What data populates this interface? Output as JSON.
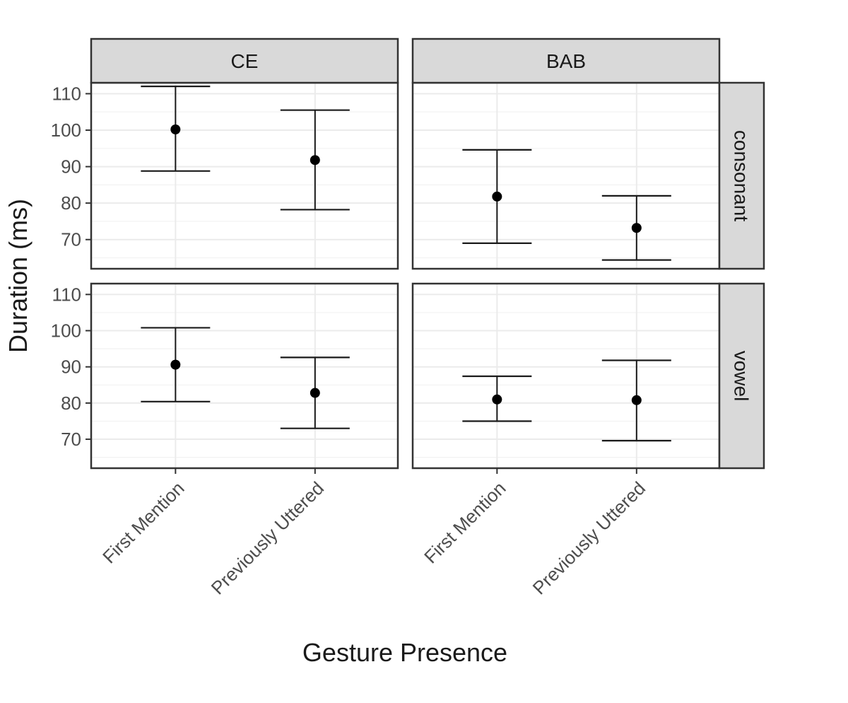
{
  "chart_data": {
    "type": "scatter",
    "subtype": "faceted point with error bars",
    "title": "",
    "xlabel": "Gesture Presence",
    "ylabel": "Duration (ms)",
    "categories": [
      "First Mention",
      "Previously Uttered"
    ],
    "column_facets": [
      "CE",
      "BAB"
    ],
    "row_facets": [
      "consonant",
      "vowel"
    ],
    "ylim": [
      62,
      113
    ],
    "yticks": [
      70,
      80,
      90,
      100,
      110
    ],
    "grid": true,
    "legend": "none",
    "panels": [
      {
        "column": "CE",
        "row": "consonant",
        "points": [
          {
            "x": "First Mention",
            "y": 100.2,
            "ymin": 88.8,
            "ymax": 112.0
          },
          {
            "x": "Previously Uttered",
            "y": 91.8,
            "ymin": 78.2,
            "ymax": 105.5
          }
        ]
      },
      {
        "column": "BAB",
        "row": "consonant",
        "points": [
          {
            "x": "First Mention",
            "y": 81.8,
            "ymin": 69.0,
            "ymax": 94.6
          },
          {
            "x": "Previously Uttered",
            "y": 73.2,
            "ymin": 64.4,
            "ymax": 82.0
          }
        ]
      },
      {
        "column": "CE",
        "row": "vowel",
        "points": [
          {
            "x": "First Mention",
            "y": 90.6,
            "ymin": 80.4,
            "ymax": 100.8
          },
          {
            "x": "Previously Uttered",
            "y": 82.8,
            "ymin": 73.0,
            "ymax": 92.6
          }
        ]
      },
      {
        "column": "BAB",
        "row": "vowel",
        "points": [
          {
            "x": "First Mention",
            "y": 81.0,
            "ymin": 75.0,
            "ymax": 87.4
          },
          {
            "x": "Previously Uttered",
            "y": 80.8,
            "ymin": 69.6,
            "ymax": 91.8
          }
        ]
      }
    ]
  }
}
